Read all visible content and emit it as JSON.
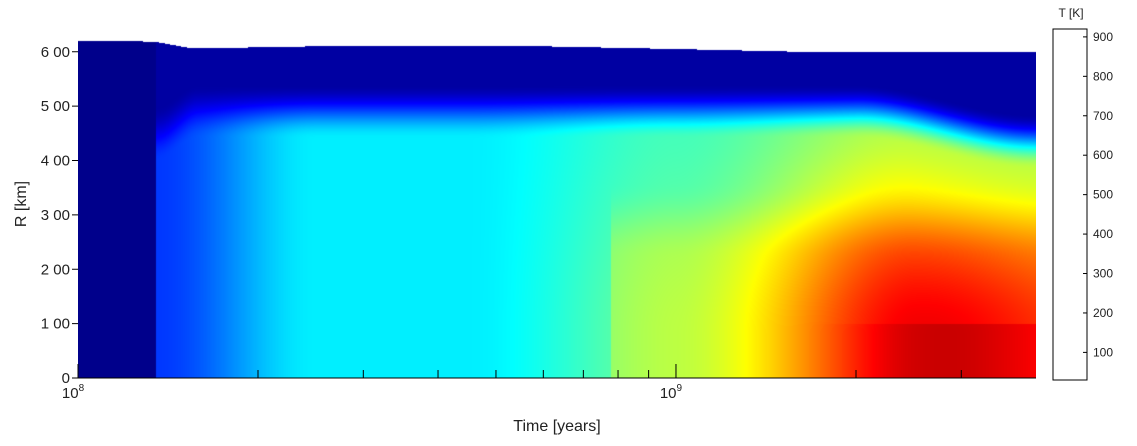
{
  "chart_data": {
    "type": "heatmap",
    "xlabel": "Time [years]",
    "ylabel": "R [km]",
    "x_scale": "log",
    "xlim": [
      100000000,
      4000000000
    ],
    "ylim": [
      0,
      640
    ],
    "x_major_ticks": [
      {
        "value": 100000000,
        "base": "10",
        "exp": "8"
      },
      {
        "value": 1000000000,
        "base": "10",
        "exp": "9"
      }
    ],
    "x_minor_ticks": [
      200000000,
      300000000,
      400000000,
      500000000,
      600000000,
      700000000,
      800000000,
      900000000,
      2000000000,
      3000000000
    ],
    "y_ticks": [
      {
        "value": 0,
        "label": "0"
      },
      {
        "value": 100,
        "label": "1 00"
      },
      {
        "value": 200,
        "label": "2 00"
      },
      {
        "value": 300,
        "label": "3 00"
      },
      {
        "value": 400,
        "label": "4 00"
      },
      {
        "value": 500,
        "label": "5 00"
      },
      {
        "value": 600,
        "label": "6 00"
      }
    ],
    "grid": false,
    "colorbar": {
      "title": "T [K]",
      "range": [
        30,
        920
      ],
      "colormap": "jet",
      "ticks": [
        {
          "value": 100,
          "label": "100"
        },
        {
          "value": 200,
          "label": "200"
        },
        {
          "value": 300,
          "label": "300"
        },
        {
          "value": 400,
          "label": "400"
        },
        {
          "value": 500,
          "label": "500"
        },
        {
          "value": 600,
          "label": "600"
        },
        {
          "value": 700,
          "label": "700"
        },
        {
          "value": 800,
          "label": "800"
        },
        {
          "value": 900,
          "label": "900"
        }
      ]
    },
    "onset_time_years": 135000000,
    "core_radius_km": 100,
    "surface_radius_km": [
      [
        100000000,
        620
      ],
      [
        120000000,
        620
      ],
      [
        135000000,
        618
      ],
      [
        145000000,
        612
      ],
      [
        155000000,
        606
      ],
      [
        250000000,
        610
      ],
      [
        600000000,
        610
      ],
      [
        1000000000,
        605
      ],
      [
        1600000000,
        600
      ],
      [
        4000000000,
        600
      ]
    ]
  }
}
